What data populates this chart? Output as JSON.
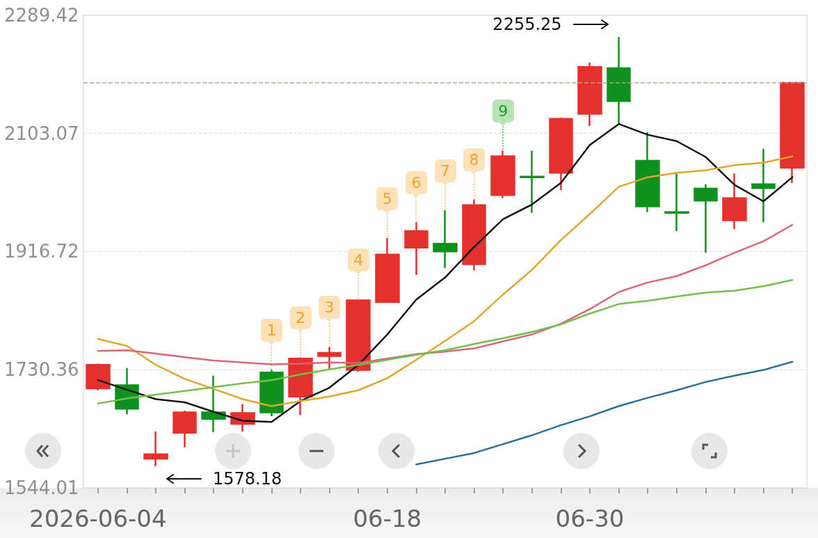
{
  "chart_data": {
    "type": "candlestick",
    "categories": [
      "2026-06-04",
      null,
      null,
      null,
      null,
      null,
      null,
      null,
      null,
      null,
      "06-18",
      null,
      null,
      null,
      null,
      null,
      null,
      "06-30",
      null,
      null,
      null,
      null,
      null,
      null,
      null
    ],
    "series": [
      {
        "ohlc": [
          [
            1701,
            1740,
            1698,
            1738
          ],
          [
            1706,
            1733,
            1660,
            1669
          ],
          [
            1590,
            1633,
            1578.18,
            1597
          ],
          [
            1631,
            1666,
            1608,
            1663
          ],
          [
            1663,
            1721,
            1632,
            1653
          ],
          [
            1645,
            1676,
            1633,
            1662
          ],
          [
            1726,
            1730,
            1657,
            1663
          ],
          [
            1688,
            1750,
            1659,
            1748
          ],
          [
            1752,
            1766,
            1732,
            1757
          ],
          [
            1730,
            1841,
            1727,
            1840
          ],
          [
            1837,
            1938,
            1836,
            1912
          ],
          [
            1923,
            1963,
            1880,
            1949
          ],
          [
            1929,
            1982,
            1891,
            1917
          ],
          [
            1897,
            1999,
            1887,
            1990
          ],
          [
            2006,
            2076,
            2001,
            2067
          ],
          [
            2035,
            2076,
            1978,
            2034
          ],
          [
            2041,
            2128,
            2014,
            2126
          ],
          [
            2134,
            2215,
            2115,
            2208
          ],
          [
            2206,
            2255.25,
            2119,
            2154
          ],
          [
            2060,
            2105,
            1979,
            1988
          ],
          [
            1979,
            2041,
            1949,
            1978
          ],
          [
            2016,
            2023,
            1915,
            1997
          ],
          [
            1966,
            2040,
            1952,
            2001
          ],
          [
            2023,
            2079,
            1963,
            2017
          ],
          [
            2049,
            2183,
            2025,
            2183
          ]
        ],
        "colors": [
          "#e4312e",
          "#10901c",
          "#e4312e",
          "#e4312e",
          "#10901c",
          "#e4312e",
          "#10901c",
          "#e4312e",
          "#e4312e",
          "#e4312e",
          "#e4312e",
          "#e4312e",
          "#10901c",
          "#e4312e",
          "#e4312e",
          "#10901c",
          "#e4312e",
          "#e4312e",
          "#10901c",
          "#10901c",
          "#10901c",
          "#10901c",
          "#e4312e",
          "#10901c",
          "#e4312e"
        ],
        "value_labels": [
          null,
          null,
          null,
          null,
          null,
          null,
          "1",
          "2",
          "3",
          "4",
          "5",
          "6",
          "7",
          "8",
          "9",
          null,
          null,
          null,
          null,
          null,
          null,
          null,
          null,
          null,
          null
        ]
      },
      {
        "type": "line",
        "color": "#141414",
        "values": [
          1714,
          1699,
          1684,
          1679,
          1664,
          1650,
          1648,
          1681,
          1702,
          1738,
          1786,
          1841,
          1876,
          1924,
          1968,
          1991,
          2025,
          2085,
          2118,
          2101,
          2091,
          2066,
          2022,
          1996,
          2034
        ]
      },
      {
        "type": "line",
        "color": "#e2a62e",
        "values": [
          1779,
          1768,
          1738,
          1716,
          1700,
          1684,
          1673,
          1681,
          1688,
          1698,
          1717,
          1746,
          1776,
          1807,
          1849,
          1888,
          1935,
          1976,
          2019,
          2034,
          2041,
          2045,
          2053,
          2057,
          2067
        ]
      },
      {
        "type": "line",
        "color": "#dc6679",
        "values": [
          1760,
          1761,
          1756,
          1750,
          1745,
          1742,
          1739,
          1740,
          1742,
          1741,
          1748,
          1755,
          1759,
          1764,
          1775,
          1786,
          1803,
          1826,
          1853,
          1868,
          1878,
          1895,
          1915,
          1933,
          1959
        ]
      },
      {
        "type": "line",
        "color": "#72c04c",
        "values": [
          1677,
          1685,
          1691,
          1697,
          1703,
          1709,
          1714,
          1723,
          1731,
          1738,
          1746,
          1754,
          1761,
          1771,
          1780,
          1790,
          1802,
          1819,
          1834,
          1839,
          1846,
          1852,
          1855,
          1862,
          1872
        ]
      },
      {
        "type": "line",
        "color": "#2b6f98",
        "values": [
          null,
          null,
          null,
          null,
          null,
          null,
          null,
          null,
          null,
          null,
          null,
          1581,
          1590,
          1599,
          1613,
          1627,
          1643,
          1657,
          1673,
          1686,
          1698,
          1711,
          1721,
          1730,
          1743
        ]
      }
    ],
    "ylim": [
      1544.01,
      2289.42
    ],
    "yticks": [
      1544.01,
      1730.36,
      1916.72,
      2103.07,
      2289.42
    ],
    "grid": "y",
    "marker": "none",
    "ref_lines": [
      {
        "axis": "y",
        "value": 2183,
        "color": "#aea78c",
        "line_style": "dashed"
      }
    ],
    "annotations": [
      "2255.25",
      "1578.18"
    ]
  }
}
